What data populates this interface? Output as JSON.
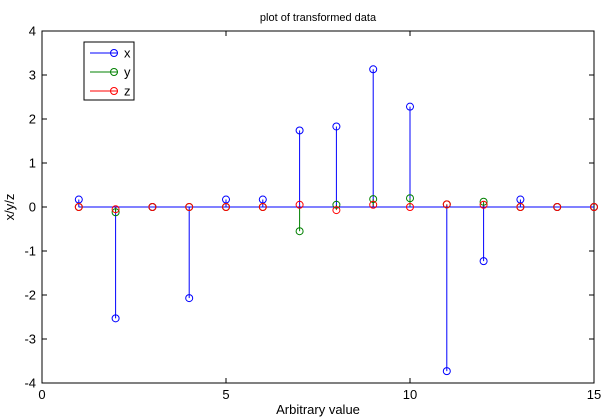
{
  "chart_data": {
    "type": "stem",
    "title": "plot of transformed data",
    "xlabel": "Arbitrary value",
    "ylabel": "x/y/z",
    "xlim": [
      0,
      15
    ],
    "ylim": [
      -4,
      4
    ],
    "xticks": [
      0,
      5,
      10,
      15
    ],
    "yticks": [
      -4,
      -3,
      -2,
      -1,
      0,
      1,
      2,
      3,
      4
    ],
    "x": [
      1,
      2,
      3,
      4,
      5,
      6,
      7,
      8,
      9,
      10,
      11,
      12,
      13,
      14,
      15
    ],
    "series": [
      {
        "name": "x",
        "color": "#0000ff",
        "values": [
          0.17,
          -2.53,
          0.0,
          -2.07,
          0.17,
          0.17,
          1.74,
          1.83,
          3.13,
          2.28,
          -3.73,
          -1.23,
          0.17,
          0.0,
          0.0
        ]
      },
      {
        "name": "y",
        "color": "#008000",
        "values": [
          0.0,
          -0.12,
          0.0,
          0.0,
          0.0,
          0.0,
          -0.55,
          0.05,
          0.18,
          0.2,
          0.06,
          0.12,
          0.0,
          0.0,
          0.0
        ]
      },
      {
        "name": "z",
        "color": "#ff0000",
        "values": [
          0.0,
          -0.05,
          0.0,
          0.0,
          0.0,
          0.0,
          0.05,
          -0.07,
          0.05,
          0.0,
          0.06,
          0.05,
          0.0,
          0.0,
          0.0
        ]
      }
    ],
    "legend": "top-left",
    "grid": false
  }
}
